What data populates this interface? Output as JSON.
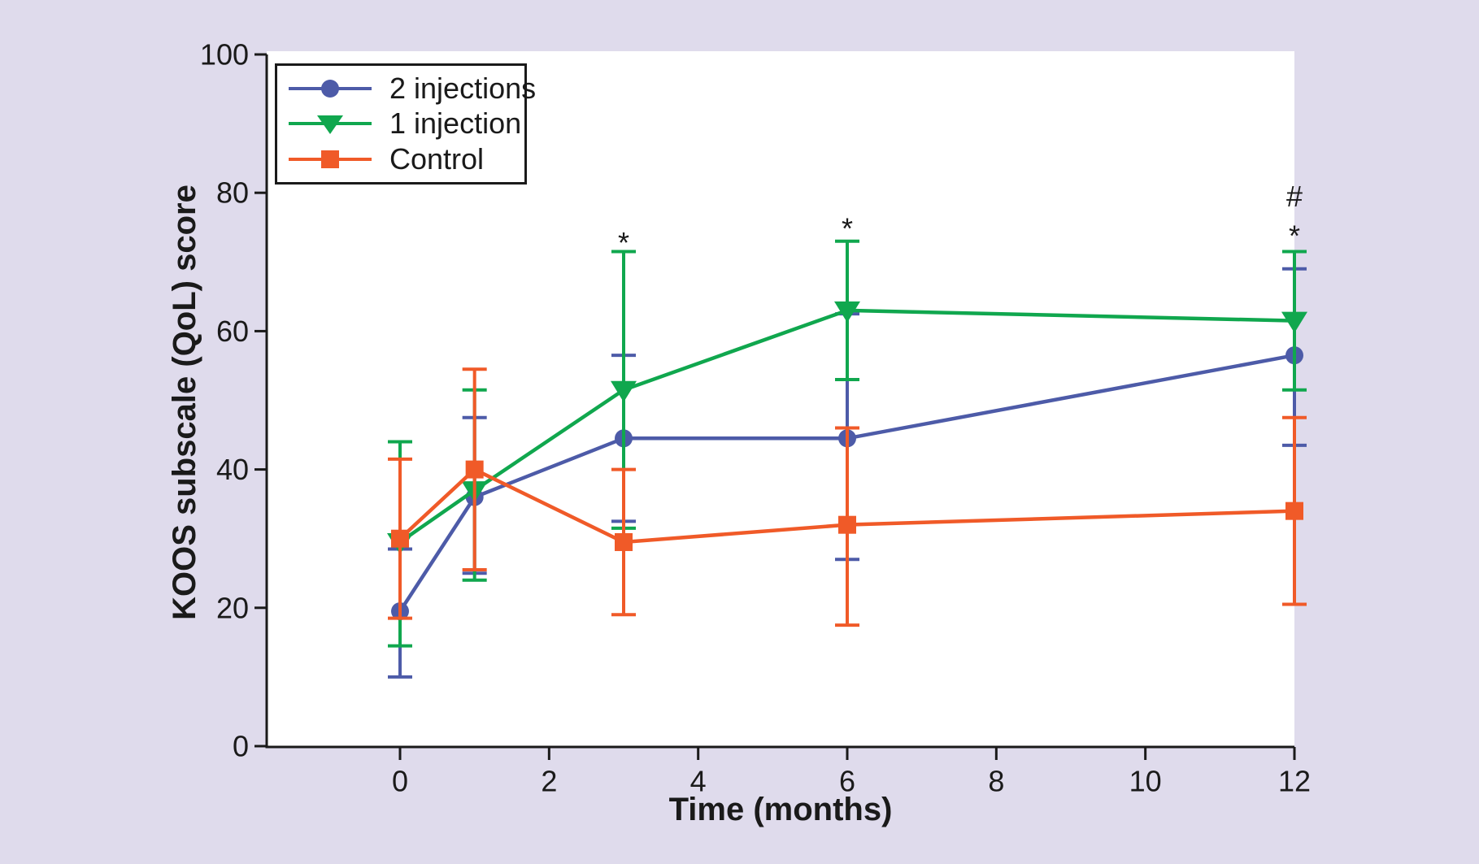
{
  "figure": {
    "background": "#DFDBEC",
    "plot_background": "#FFFFFF",
    "axis_color": "#1A1A1A",
    "text_color": "#1A1A1A"
  },
  "chart_data": {
    "type": "line",
    "title": "",
    "x_label": "Time (months)",
    "y_label": "KOOS subscale (QoL) score",
    "x_ticks": [
      0,
      2,
      4,
      6,
      8,
      10,
      12
    ],
    "y_ticks": [
      0,
      20,
      40,
      60,
      80,
      100
    ],
    "x_range": [
      0,
      12
    ],
    "y_range": [
      0,
      100
    ],
    "grid": false,
    "legend_position": "top-left",
    "error_bars": true,
    "x": [
      0,
      1,
      3,
      6,
      12
    ],
    "series": [
      {
        "name": "2 injections",
        "color": "#4D5BA8",
        "marker": "circle",
        "values": [
          19.5,
          36,
          44.5,
          44.5,
          56.5
        ],
        "err_low": [
          10,
          25,
          32.5,
          27,
          43.5
        ],
        "err_high": [
          28.5,
          47.5,
          56.5,
          62.5,
          69
        ]
      },
      {
        "name": "1 injection",
        "color": "#10A74E",
        "marker": "triangle-down",
        "values": [
          29.5,
          37,
          51.5,
          63,
          61.5
        ],
        "err_low": [
          14.5,
          24,
          31.5,
          53,
          51.5
        ],
        "err_high": [
          44,
          51.5,
          71.5,
          73,
          71.5
        ]
      },
      {
        "name": "Control",
        "color": "#F05A28",
        "marker": "square",
        "values": [
          30,
          40,
          29.5,
          32,
          34
        ],
        "err_low": [
          18.5,
          25.5,
          19,
          17.5,
          20.5
        ],
        "err_high": [
          41.5,
          54.5,
          40,
          46,
          47.5
        ]
      }
    ],
    "annotations": [
      {
        "x": 3,
        "symbol": "*",
        "y": 74
      },
      {
        "x": 6,
        "symbol": "*",
        "y": 76
      },
      {
        "x": 12,
        "symbol": "*",
        "y": 75
      },
      {
        "x": 12,
        "symbol": "#",
        "y": 79.5
      }
    ]
  }
}
